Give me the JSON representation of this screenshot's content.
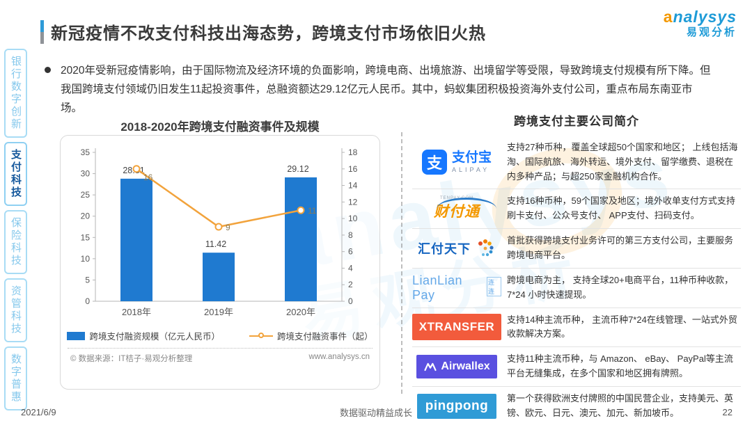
{
  "page": {
    "title": "新冠疫情不改支付科技出海态势，跨境支付市场依旧火热",
    "footer": {
      "date": "2021/6/9",
      "slogan": "数据驱动精益成长",
      "page_number": "22"
    }
  },
  "brand": {
    "logo_en": "analysys",
    "logo_cn": "易观分析",
    "blue": "#1E9BD7",
    "orange": "#F39800"
  },
  "watermark": {
    "text_en": "analysys",
    "text_cn": "易观分析"
  },
  "sidebar": {
    "items": [
      {
        "label": "银行数字创新",
        "active": false
      },
      {
        "label": "支付科技",
        "active": true
      },
      {
        "label": "保险科技",
        "active": false
      },
      {
        "label": "资管科技",
        "active": false
      },
      {
        "label": "数字普惠",
        "active": false
      }
    ]
  },
  "summary": {
    "bullet_text": "2020年受新冠疫情影响，由于国际物流及经济环境的负面影响，跨境电商、出境旅游、出境留学等受限，导致跨境支付规模有所下降。但我国跨境支付领域仍旧发生11起投资事件，总融资额达29.12亿元人民币。其中，蚂蚁集团积极投资海外支付公司，重点布局东南亚市场。"
  },
  "chart": {
    "title": "2018-2020年跨境支付融资事件及规模",
    "source_left": "© 数据来源：IT桔子·易观分析整理",
    "source_right": "www.analysys.cn"
  },
  "chart_data": {
    "type": "bar",
    "categories": [
      "2018年",
      "2019年",
      "2020年"
    ],
    "series": [
      {
        "name": "跨境支付融资规模（亿元人民币）",
        "type": "bar",
        "axis": "left",
        "values": [
          28.81,
          11.42,
          29.12
        ],
        "color": "#1F7AD0"
      },
      {
        "name": "跨境支付融资事件（起）",
        "type": "line",
        "axis": "right",
        "values": [
          16,
          9,
          11
        ],
        "color": "#F2A33C"
      }
    ],
    "title": "2018-2020年跨境支付融资事件及规模",
    "xlabel": "",
    "ylabel_left": "亿元人民币",
    "ylabel_right": "起",
    "left_axis": {
      "min": 0,
      "max": 35,
      "step": 5
    },
    "right_axis": {
      "min": 0,
      "max": 18,
      "step": 2
    },
    "grid": false,
    "legend_position": "bottom"
  },
  "companies": {
    "heading": "跨境支付主要公司简介",
    "rows": [
      {
        "name": "支付宝 ALIPAY",
        "mark": "支",
        "cn": "支付宝",
        "en": "ALIPAY",
        "desc": "支持27种币种，覆盖全球超50个国家和地区； 上线包括海淘、国际航旅、海外转运、境外支付、留学缴费、退税在内多种产品；与超250家金融机构合作。"
      },
      {
        "name": "财付通",
        "logo_text": "财付通",
        "logo_sub": "TENPAY.COM",
        "desc": "支持16种币种，59个国家及地区；境外收单支付方式支持刷卡支付、公众号支付、 APP支付、扫码支付。"
      },
      {
        "name": "汇付天下",
        "logo_text": "汇付天下",
        "desc": "首批获得跨境支付业务许可的第三方支付公司，主要服务跨境电商平台。"
      },
      {
        "name": "LianLian Pay 连连",
        "logo_text": "LianLian Pay",
        "logo_sub": "连连",
        "desc": "跨境电商为主， 支持全球20+电商平台，11种币种收款，7*24 小时快速提现。"
      },
      {
        "name": "XTRANSFER",
        "logo_text": "XTRANSFER",
        "desc": "支持14种主流币种， 主流币种7*24在线管理、一站式外贸收款解决方案。"
      },
      {
        "name": "Airwallex",
        "logo_text": "Airwallex",
        "desc": "支持11种主流币种，与 Amazon、 eBay、 PayPal等主流平台无缝集成，在多个国家和地区拥有牌照。"
      },
      {
        "name": "pingpong",
        "logo_text": "pingpong",
        "desc": "第一个获得欧洲支付牌照的中国民营企业，支持美元、英镑、欧元、日元、澳元、加元、新加坡币。"
      }
    ]
  }
}
